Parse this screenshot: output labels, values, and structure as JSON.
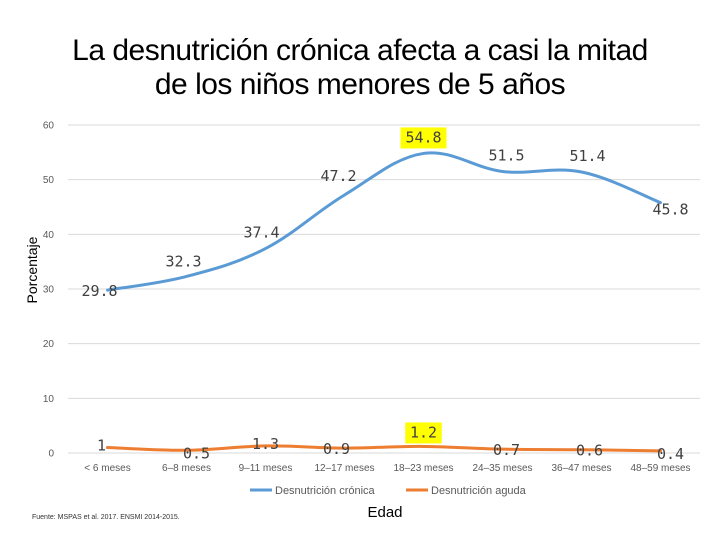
{
  "title": {
    "line1": "La desnutrición crónica afecta a casi la mitad",
    "line2": "de los niños menores de 5 años"
  },
  "chart_data": {
    "type": "line",
    "categories": [
      "< 6 meses",
      "6–8 meses",
      "9–11 meses",
      "12–17 meses",
      "18–23 meses",
      "24–35 meses",
      "36–47 meses",
      "48–59 meses"
    ],
    "series": [
      {
        "name": "Desnutrición crónica",
        "values": [
          29.8,
          32.3,
          37.4,
          47.2,
          54.8,
          51.5,
          51.4,
          45.8
        ],
        "color": "#5b9bd5",
        "labels": [
          "29.8",
          "32.3",
          "37.4",
          "47.2",
          "54.8",
          "51.5",
          "51.4",
          "45.8"
        ]
      },
      {
        "name": "Desnutrición aguda",
        "values": [
          1,
          0.5,
          1.3,
          0.9,
          1.2,
          0.7,
          0.6,
          0.4
        ],
        "color": "#ed7d31",
        "labels": [
          "1",
          "0.5",
          "1.3",
          "0.9",
          "1.2",
          "0.7",
          "0.6",
          "0.4"
        ]
      }
    ],
    "highlight_color": "#ffff00",
    "highlighted_points": [
      {
        "series": 0,
        "index": 4
      },
      {
        "series": 1,
        "index": 4
      }
    ],
    "yticks": [
      "0",
      "10",
      "20",
      "30",
      "40",
      "50",
      "60"
    ],
    "ylim": [
      0,
      60
    ],
    "ylabel": "Porcentaje",
    "xlabel": "Edad",
    "grid": true,
    "legend_position": "bottom"
  },
  "source": "Fuente: MSPAS et al. 2017. ENSMI 2014-2015."
}
